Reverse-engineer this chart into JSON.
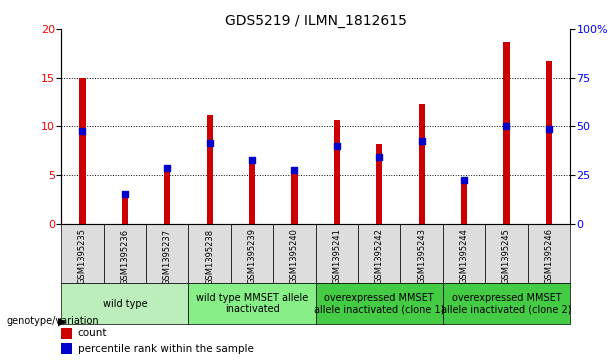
{
  "title": "GDS5219 / ILMN_1812615",
  "samples": [
    "GSM1395235",
    "GSM1395236",
    "GSM1395237",
    "GSM1395238",
    "GSM1395239",
    "GSM1395240",
    "GSM1395241",
    "GSM1395242",
    "GSM1395243",
    "GSM1395244",
    "GSM1395245",
    "GSM1395246"
  ],
  "counts": [
    15.0,
    2.8,
    5.6,
    11.2,
    6.6,
    5.5,
    10.7,
    8.2,
    12.3,
    4.1,
    18.7,
    16.7
  ],
  "percentiles_left_scale": [
    9.5,
    3.1,
    5.7,
    8.3,
    6.5,
    5.5,
    8.0,
    6.8,
    8.5,
    4.5,
    10.0,
    9.7
  ],
  "ylim_left": [
    0,
    20
  ],
  "ylim_right": [
    0,
    100
  ],
  "yticks_left": [
    0,
    5,
    10,
    15,
    20
  ],
  "yticks_right": [
    0,
    25,
    50,
    75,
    100
  ],
  "ytick_labels_right": [
    "0",
    "25",
    "50",
    "75",
    "100%"
  ],
  "bar_color": "#cc0000",
  "dot_color": "#0000cc",
  "bar_width": 0.15,
  "groups": [
    {
      "label": "wild type",
      "start": 0,
      "end": 2,
      "color": "#bbeebb"
    },
    {
      "label": "wild type MMSET allele\ninactivated",
      "start": 3,
      "end": 5,
      "color": "#88ee88"
    },
    {
      "label": "overexpressed MMSET\nallele inactivated (clone 1)",
      "start": 6,
      "end": 8,
      "color": "#44cc44"
    },
    {
      "label": "overexpressed MMSET\nallele inactivated (clone 2)",
      "start": 9,
      "end": 11,
      "color": "#44cc44"
    }
  ],
  "xlabel_row": "genotype/variation",
  "title_fontsize": 10,
  "tick_fontsize": 6.5,
  "label_fontsize": 7.5,
  "sample_label_fontsize": 6,
  "group_label_fontsize": 7
}
